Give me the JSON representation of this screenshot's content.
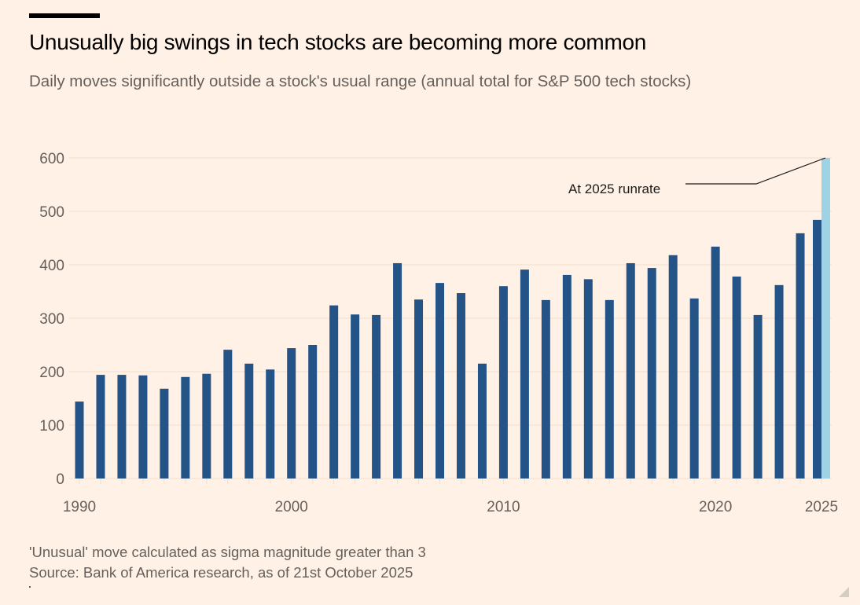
{
  "header": {
    "title": "Unusually big swings in tech stocks are becoming more common",
    "subtitle": "Daily moves significantly outside a stock's usual range (annual total for S&P 500 tech stocks)"
  },
  "footer": {
    "note": "'Unusual' move calculated as sigma magnitude greater than 3",
    "source": "Source: Bank of America research, as of 21st October 2025"
  },
  "colors": {
    "background": "#fff1e5",
    "bar": "#245387",
    "runrate_bar": "#9dd3e5",
    "gridline": "#f2dfce",
    "axis_text": "#66605c",
    "annotation_line": "#1a1a1a"
  },
  "chart_data": {
    "type": "bar",
    "title": "Unusually big swings in tech stocks are becoming more common",
    "subtitle": "Daily moves significantly outside a stock's usual range (annual total for S&P 500 tech stocks)",
    "xlabel": "",
    "ylabel": "",
    "ylim": [
      0,
      600
    ],
    "yticks": [
      0,
      100,
      200,
      300,
      400,
      500,
      600
    ],
    "xtick_labels": [
      "1990",
      "2000",
      "2010",
      "2020",
      "2025"
    ],
    "grid": true,
    "legend": "none",
    "categories": [
      1990,
      1991,
      1992,
      1993,
      1994,
      1995,
      1996,
      1997,
      1998,
      1999,
      2000,
      2001,
      2002,
      2003,
      2004,
      2005,
      2006,
      2007,
      2008,
      2009,
      2010,
      2011,
      2012,
      2013,
      2014,
      2015,
      2016,
      2017,
      2018,
      2019,
      2020,
      2021,
      2022,
      2023,
      2024,
      2025
    ],
    "series": [
      {
        "name": "Annual total",
        "values": [
          144,
          194,
          194,
          193,
          168,
          190,
          196,
          241,
          215,
          204,
          244,
          250,
          324,
          307,
          306,
          403,
          335,
          366,
          347,
          215,
          360,
          391,
          334,
          381,
          373,
          334,
          403,
          394,
          418,
          337,
          434,
          378,
          306,
          362,
          459,
          484
        ]
      },
      {
        "name": "At 2025 runrate",
        "category": 2025,
        "value": 600
      }
    ],
    "annotations": [
      {
        "text": "At 2025 runrate",
        "target": "2025 runrate bar"
      }
    ]
  }
}
